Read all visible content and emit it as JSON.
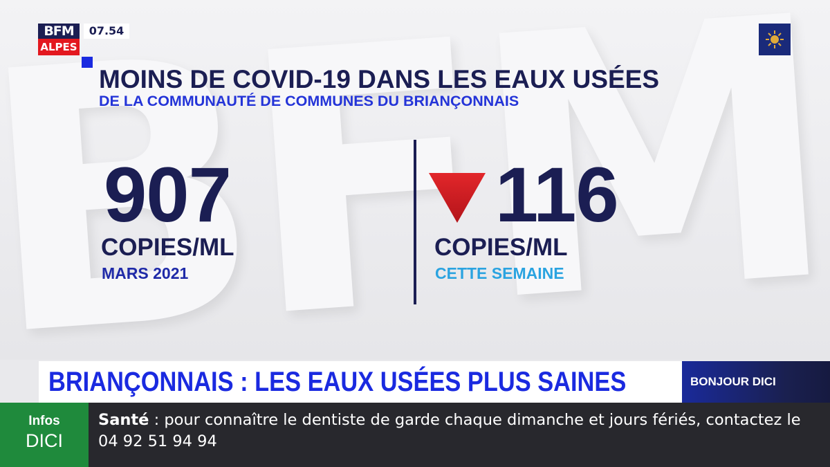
{
  "channel": {
    "logo_top": "BFM",
    "logo_bottom": "ALPES",
    "clock": "07.54"
  },
  "background": {
    "watermark": "BFM"
  },
  "graphic": {
    "title": "MOINS DE COVID-19 DANS LES EAUX USÉES",
    "subtitle": "DE LA COMMUNAUTÉ DE COMMUNES DU BRIANÇONNAIS",
    "left_stat": {
      "value": "907",
      "unit": "COPIES/ML",
      "caption": "MARS 2021"
    },
    "right_stat": {
      "trend": "down",
      "trend_color": "#d81e22",
      "value": "116",
      "unit": "COPIES/ML",
      "caption": "CETTE SEMAINE"
    }
  },
  "lower_third": {
    "headline": "BRIANÇONNAIS : LES EAUX USÉES PLUS SAINES",
    "show": "BONJOUR DICI"
  },
  "ticker": {
    "logo_line1": "Infos",
    "logo_line2": "DICI",
    "category": "Santé",
    "separator": " : ",
    "text": "pour connaître le dentiste de garde chaque dimanche et jours fériés, contactez le 04 92 51 94 94"
  },
  "colors": {
    "navy": "#1b1e53",
    "accent_blue": "#1a2ae0",
    "light_blue": "#2aa3e0",
    "ticker_green": "#1f8a3c",
    "alert_red": "#e3181f"
  }
}
